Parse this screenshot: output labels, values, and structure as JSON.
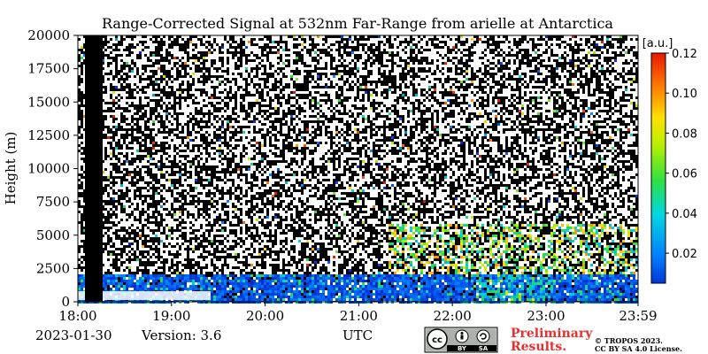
{
  "chart_data": {
    "type": "heatmap",
    "title": "Range-Corrected Signal at 532nm Far-Range from arielle at Antarctica",
    "ylabel": "Height (m)",
    "xlabel": "UTC",
    "x_ticks": [
      "18:00",
      "19:00",
      "20:00",
      "21:00",
      "22:00",
      "23:00",
      "23:59"
    ],
    "x_range": [
      "18:00",
      "23:59"
    ],
    "y_ticks": [
      0,
      2500,
      5000,
      7500,
      10000,
      12500,
      15000,
      17500,
      20000
    ],
    "y_range": [
      0,
      20000
    ],
    "colorbar": {
      "unit": "[a.u.]",
      "range": [
        0.005,
        0.12
      ],
      "ticks": [
        "0.02",
        "0.04",
        "0.06",
        "0.08",
        "0.10",
        "0.12"
      ],
      "colormap": "jet"
    },
    "grid": false
  },
  "footer": {
    "date": "2023-01-30",
    "version": "Version: 3.6",
    "preliminary_line1": "Preliminary",
    "preliminary_line2": "Results.",
    "copyright_line1": "© TROPOS 2023.",
    "copyright_line2": "CC BY SA 4.0 License.",
    "license_badge": {
      "by": "BY",
      "sa": "SA"
    }
  }
}
